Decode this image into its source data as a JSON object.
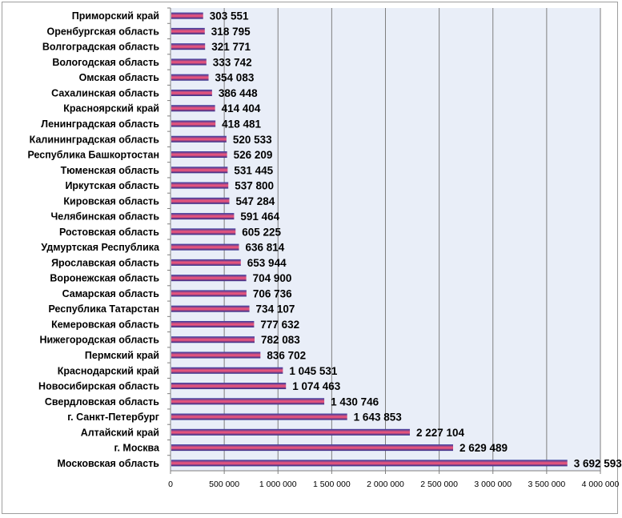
{
  "chart_data": {
    "type": "bar",
    "orientation": "horizontal",
    "categories": [
      "Приморский край",
      "Оренбургская область",
      "Волгоградская область",
      "Вологодская область",
      "Омская область",
      "Сахалинская область",
      "Красноярский край",
      "Ленинградская область",
      "Калининградская область",
      "Республика Башкортостан",
      "Тюменская область",
      "Иркутская область",
      "Кировская область",
      "Челябинская область",
      "Ростовская область",
      "Удмуртская Республика",
      "Ярославская область",
      "Воронежская область",
      "Самарская область",
      "Республика Татарстан",
      "Кемеровская область",
      "Нижегородская область",
      "Пермский край",
      "Краснодарский край",
      "Новосибирская область",
      "Свердловская область",
      "г. Санкт-Петербург",
      "Алтайский край",
      "г. Москва",
      "Московская область"
    ],
    "values": [
      303551,
      318795,
      321771,
      333742,
      354083,
      386448,
      414404,
      418481,
      520533,
      526209,
      531445,
      537800,
      547284,
      591464,
      605225,
      636814,
      653944,
      704900,
      706736,
      734107,
      777632,
      782083,
      836702,
      1045531,
      1074463,
      1430746,
      1643853,
      2227104,
      2629489,
      3692593
    ],
    "value_labels": [
      "303 551",
      "318 795",
      "321 771",
      "333 742",
      "354 083",
      "386 448",
      "414 404",
      "418 481",
      "520 533",
      "526 209",
      "531 445",
      "537 800",
      "547 284",
      "591 464",
      "605 225",
      "636 814",
      "653 944",
      "704 900",
      "706 736",
      "734 107",
      "777 632",
      "782 083",
      "836 702",
      "1 045 531",
      "1 074 463",
      "1 430 746",
      "1 643 853",
      "2 227 104",
      "2 629 489",
      "3 692 593"
    ],
    "xlim": [
      0,
      4000000
    ],
    "x_ticks": [
      0,
      500000,
      1000000,
      1500000,
      2000000,
      2500000,
      3000000,
      3500000,
      4000000
    ],
    "x_tick_labels": [
      "0",
      "500 000",
      "1 000 000",
      "1 500 000",
      "2 000 000",
      "2 500 000",
      "3 000 000",
      "3 500 000",
      "4 000 000"
    ],
    "grid": true,
    "colors": {
      "plot_background": "#e9eef8",
      "bar_top": "#2b3aa0",
      "bar_middle": "#e8547c",
      "bar_bottom": "#1f2a8c",
      "gridline": "#7f7f7f"
    }
  }
}
